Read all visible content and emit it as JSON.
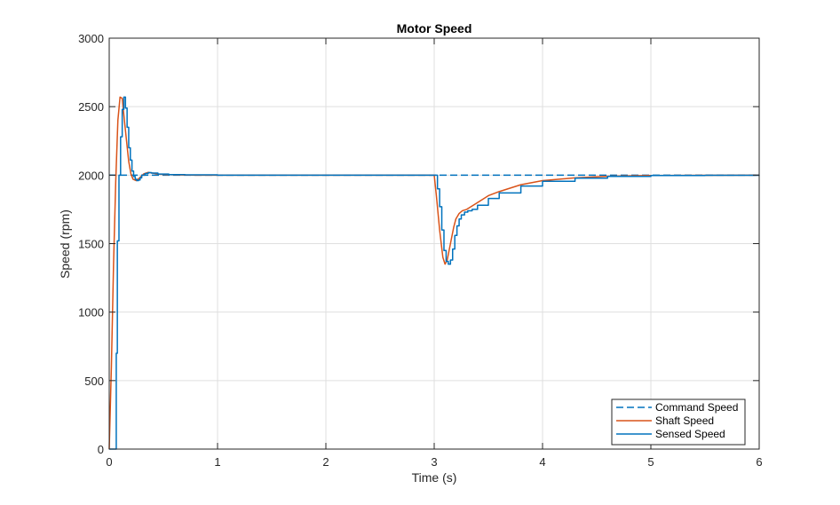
{
  "chart_data": {
    "type": "line",
    "title": "Motor Speed",
    "xlabel": "Time (s)",
    "ylabel": "Speed (rpm)",
    "xlim": [
      0,
      6
    ],
    "ylim": [
      0,
      3000
    ],
    "xticks": [
      0,
      1,
      2,
      3,
      4,
      5,
      6
    ],
    "yticks": [
      0,
      500,
      1000,
      1500,
      2000,
      2500,
      3000
    ],
    "grid": true,
    "legend_position": "bottom-right",
    "series": [
      {
        "name": "Command Speed",
        "color": "#0072bd",
        "style": "dashed",
        "x": [
          0,
          6
        ],
        "y": [
          2000,
          2000
        ]
      },
      {
        "name": "Shaft Speed",
        "color": "#d95319",
        "style": "solid",
        "x": [
          0,
          0.02,
          0.04,
          0.06,
          0.08,
          0.1,
          0.12,
          0.14,
          0.16,
          0.18,
          0.2,
          0.22,
          0.25,
          0.28,
          0.32,
          0.36,
          0.4,
          0.45,
          0.5,
          0.6,
          0.8,
          1.0,
          2.0,
          3.0,
          3.02,
          3.05,
          3.08,
          3.1,
          3.12,
          3.15,
          3.18,
          3.2,
          3.23,
          3.26,
          3.3,
          3.4,
          3.5,
          3.6,
          3.8,
          4.0,
          4.3,
          4.6,
          5.0,
          5.5,
          6.0
        ],
        "y": [
          0,
          600,
          1350,
          1950,
          2400,
          2570,
          2560,
          2400,
          2250,
          2100,
          2010,
          1970,
          1960,
          1980,
          2010,
          2020,
          2015,
          2008,
          2005,
          2002,
          2000,
          2000,
          2000,
          2000,
          1850,
          1600,
          1400,
          1350,
          1380,
          1500,
          1620,
          1680,
          1720,
          1740,
          1750,
          1800,
          1850,
          1880,
          1930,
          1960,
          1980,
          1992,
          1997,
          1999,
          2000
        ]
      },
      {
        "name": "Sensed Speed",
        "color": "#0072bd",
        "style": "step",
        "x": [
          0,
          0.065,
          0.075,
          0.09,
          0.105,
          0.12,
          0.135,
          0.15,
          0.165,
          0.18,
          0.195,
          0.21,
          0.225,
          0.24,
          0.255,
          0.27,
          0.285,
          0.3,
          0.33,
          0.36,
          0.39,
          0.45,
          0.55,
          0.7,
          1.0,
          3.0,
          3.03,
          3.05,
          3.07,
          3.09,
          3.11,
          3.13,
          3.15,
          3.17,
          3.19,
          3.21,
          3.23,
          3.25,
          3.28,
          3.31,
          3.35,
          3.4,
          3.5,
          3.6,
          3.8,
          4.0,
          4.3,
          4.6,
          5.0,
          5.5,
          6.0
        ],
        "y": [
          0,
          700,
          1520,
          2000,
          2280,
          2480,
          2570,
          2490,
          2350,
          2200,
          2110,
          2030,
          1990,
          1970,
          1960,
          1965,
          1980,
          2000,
          2012,
          2018,
          2015,
          2008,
          2004,
          2002,
          2000,
          2000,
          1900,
          1770,
          1600,
          1450,
          1370,
          1350,
          1380,
          1460,
          1560,
          1630,
          1680,
          1710,
          1730,
          1740,
          1750,
          1780,
          1830,
          1870,
          1920,
          1955,
          1978,
          1991,
          1997,
          1999,
          2000
        ]
      }
    ]
  }
}
